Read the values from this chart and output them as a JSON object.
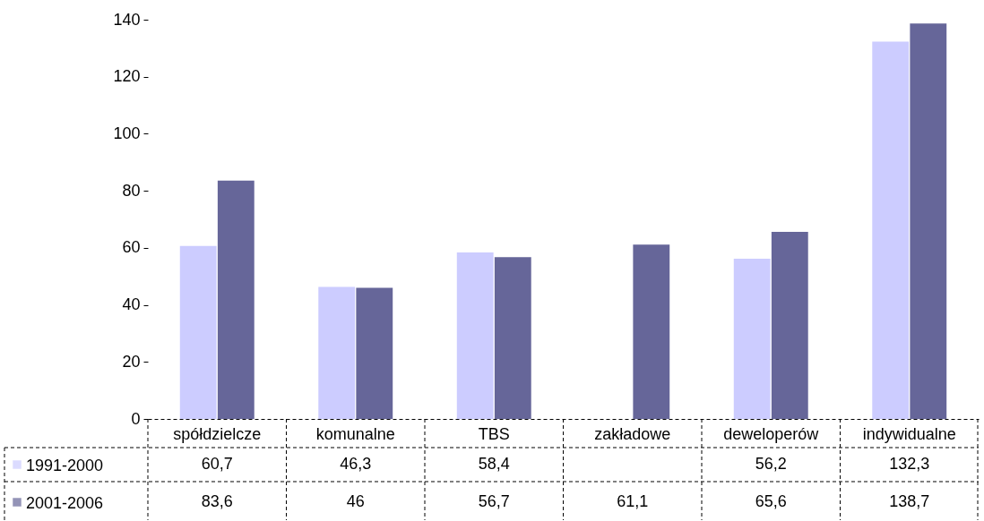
{
  "chart_data": {
    "type": "bar",
    "categories": [
      "spółdzielcze",
      "komunalne",
      "TBS",
      "zakładowe",
      "deweloperów",
      "indywidualne"
    ],
    "series": [
      {
        "name": "1991-2000",
        "color": "#ccccff",
        "values": [
          60.7,
          46.3,
          58.4,
          null,
          56.2,
          132.3
        ],
        "value_labels": [
          "60,7",
          "46,3",
          "58,4",
          null,
          "56,2",
          "132,3"
        ]
      },
      {
        "name": "2001-2006",
        "color": "#666699",
        "values": [
          83.6,
          46,
          56.7,
          61.1,
          65.6,
          138.7
        ],
        "value_labels": [
          "83,6",
          "46",
          "56,7",
          "61,1",
          "65,6",
          "138,7"
        ]
      }
    ],
    "ylim": [
      0,
      140
    ],
    "yticks": [
      0,
      20,
      40,
      60,
      80,
      100,
      120,
      140
    ],
    "grid": false,
    "legend": "bottom left"
  }
}
